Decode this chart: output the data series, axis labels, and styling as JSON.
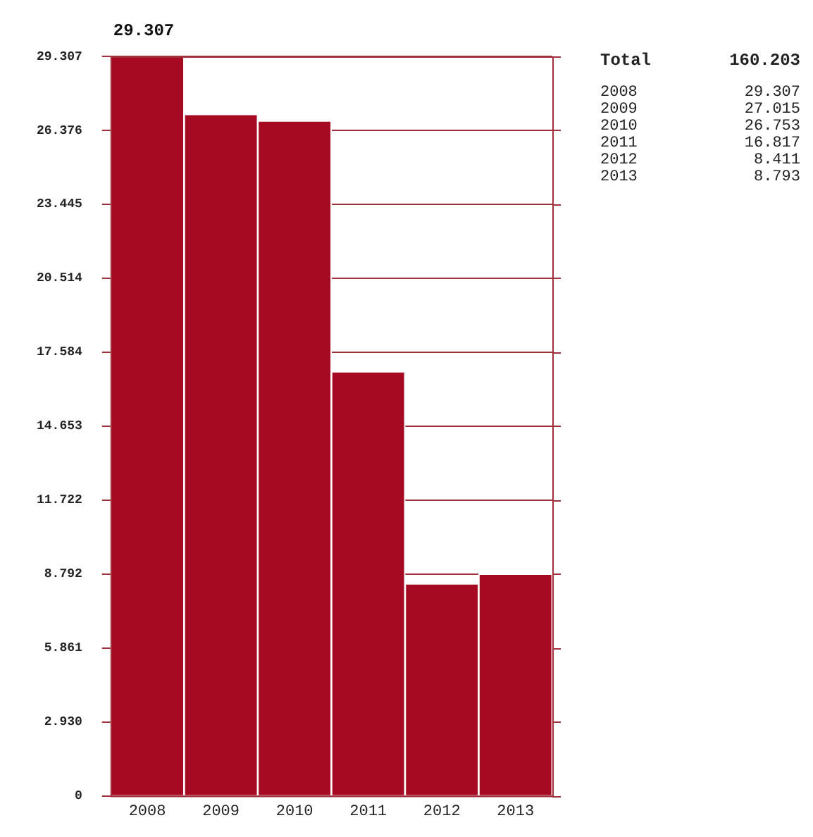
{
  "chart_data": {
    "type": "bar",
    "title": "29.307",
    "categories": [
      "2008",
      "2009",
      "2010",
      "2011",
      "2012",
      "2013"
    ],
    "values": [
      29.307,
      27.015,
      26.753,
      16.817,
      8.411,
      8.793
    ],
    "color": "#a50a22",
    "ylim": [
      0,
      29.307
    ],
    "yticks": [
      0,
      {
        "value": 2.93,
        "label": "2.930"
      },
      5.861,
      8.792,
      11.722,
      14.653,
      17.584,
      20.514,
      23.445,
      26.376,
      29.307
    ],
    "grid": "y",
    "legend": false,
    "annotations": [
      "Total",
      "160.203",
      "2008",
      "29.307",
      "2009",
      "27.015",
      "2010",
      "26.753",
      "2011",
      "16.817",
      "2012",
      "8.411",
      "2013",
      "8.793"
    ]
  }
}
